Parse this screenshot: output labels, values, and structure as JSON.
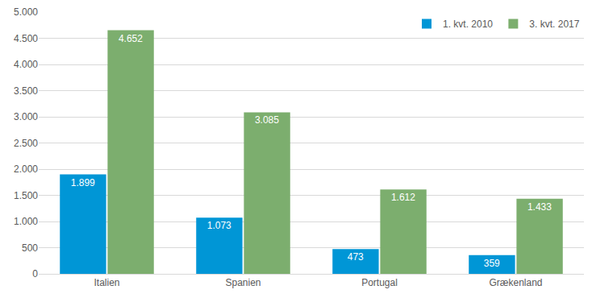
{
  "chart_data": {
    "type": "bar",
    "categories": [
      "Italien",
      "Spanien",
      "Portugal",
      "Grækenland"
    ],
    "series": [
      {
        "name": "1. kvt. 2010",
        "color": "#0096d6",
        "values": [
          1899,
          1073,
          473,
          359
        ],
        "value_labels": [
          "1.899",
          "1.073",
          "473",
          "359"
        ]
      },
      {
        "name": "3. kvt. 2017",
        "color": "#7cae6e",
        "values": [
          4652,
          3085,
          1612,
          1433
        ],
        "value_labels": [
          "4.652",
          "3.085",
          "1.612",
          "1.433"
        ]
      }
    ],
    "ylim": [
      0,
      5000
    ],
    "yticks": [
      0,
      500,
      {
        "value": 1000,
        "label": "1.000"
      },
      {
        "value": 1500,
        "label": "1.500"
      },
      {
        "value": 2000,
        "label": "2.000"
      },
      {
        "value": 2500,
        "label": "2.500"
      },
      {
        "value": 3000,
        "label": "3.000"
      },
      {
        "value": 3500,
        "label": "3.500"
      },
      {
        "value": 4000,
        "label": "4.000"
      },
      {
        "value": 4500,
        "label": "4.500"
      },
      {
        "value": 5000,
        "label": "5.000"
      }
    ],
    "grid": true,
    "legend": "top right",
    "data_labels": true
  }
}
